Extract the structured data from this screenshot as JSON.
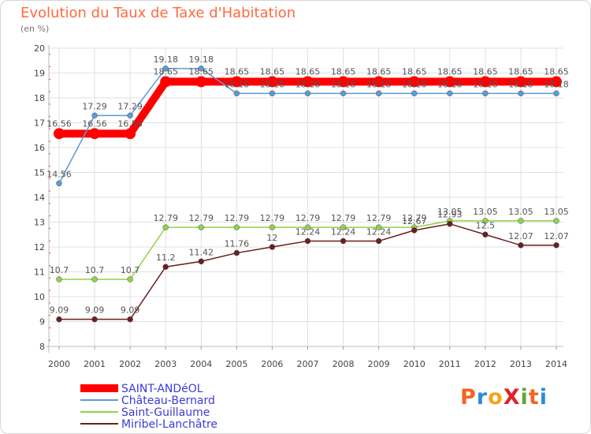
{
  "header": {
    "title": "Evolution du Taux de Taxe d'Habitation",
    "subtitle": "(en %)"
  },
  "brand": {
    "name": "ProXiti",
    "colors": [
      "#f26522",
      "#2b8cd6",
      "#f7a21b",
      "#e0202a",
      "#5aa832",
      "#f26522",
      "#2b8cd6"
    ]
  },
  "colors": {
    "title": "#ff6a3d",
    "grid": "#e0e0e0",
    "axis_tick_marks": "#e23b3b",
    "legend_text": "#3b3bd8"
  },
  "chart_data": {
    "type": "line",
    "title": "Evolution du Taux de Taxe d'Habitation",
    "ylabel": "(en %)",
    "xlabel": "",
    "ylim": [
      8,
      20
    ],
    "yticks": [
      "8",
      "9",
      "10",
      "11",
      "12",
      "13",
      "14",
      "15",
      "16",
      "17",
      "18",
      "19",
      "20"
    ],
    "categories": [
      "2000",
      "2001",
      "2002",
      "2003",
      "2004",
      "2005",
      "2006",
      "2007",
      "2008",
      "2009",
      "2010",
      "2011",
      "2012",
      "2013",
      "2014"
    ],
    "grid": true,
    "legend_position": "bottom-left",
    "series": [
      {
        "name": "SAINT-ANDéOL",
        "color": "#ff0000",
        "style": "thick",
        "values": [
          16.56,
          16.56,
          16.56,
          18.65,
          18.65,
          18.65,
          18.65,
          18.65,
          18.65,
          18.65,
          18.65,
          18.65,
          18.65,
          18.65,
          18.65
        ],
        "labels": [
          "16.56",
          "16.56",
          "16.56",
          "18.65",
          "18.65",
          "18.65",
          "18.65",
          "18.65",
          "18.65",
          "18.65",
          "18.65",
          "18.65",
          "18.65",
          "18.65",
          "18.65"
        ]
      },
      {
        "name": "Château-Bernard",
        "color": "#5b9bd5",
        "style": "thin",
        "values": [
          14.56,
          17.29,
          17.29,
          19.18,
          19.18,
          18.18,
          18.18,
          18.18,
          18.18,
          18.18,
          18.18,
          18.18,
          18.18,
          18.18,
          18.18
        ],
        "labels": [
          "14.56",
          "17.29",
          "17.29",
          "19.18",
          "19.18",
          "18.18",
          "18.18",
          "18.18",
          "18.18",
          "18.18",
          "18.18",
          "18.18",
          "18.18",
          "18.18",
          "18.18"
        ]
      },
      {
        "name": "Saint-Guillaume",
        "color": "#8fd14f",
        "style": "thin",
        "values": [
          10.7,
          10.7,
          10.7,
          12.79,
          12.79,
          12.79,
          12.79,
          12.79,
          12.79,
          12.79,
          12.79,
          13.05,
          13.05,
          13.05,
          13.05
        ],
        "labels": [
          "10.7",
          "10.7",
          "10.7",
          "12.79",
          "12.79",
          "12.79",
          "12.79",
          "12.79",
          "12.79",
          "12.79",
          "12.79",
          "13.05",
          "13.05",
          "13.05",
          "13.05"
        ]
      },
      {
        "name": "Miribel-Lanchâtre",
        "color": "#6b1f1f",
        "style": "thin",
        "values": [
          9.09,
          9.09,
          9.09,
          11.2,
          11.42,
          11.76,
          12,
          12.24,
          12.24,
          12.24,
          12.67,
          12.93,
          12.5,
          12.07,
          12.07
        ],
        "labels": [
          "9.09",
          "9.09",
          "9.09",
          "11.2",
          "11.42",
          "11.76",
          "12",
          "12.24",
          "12.24",
          "12.24",
          "12.67",
          "12.93",
          "12.5",
          "12.07",
          "12.07"
        ]
      }
    ]
  }
}
